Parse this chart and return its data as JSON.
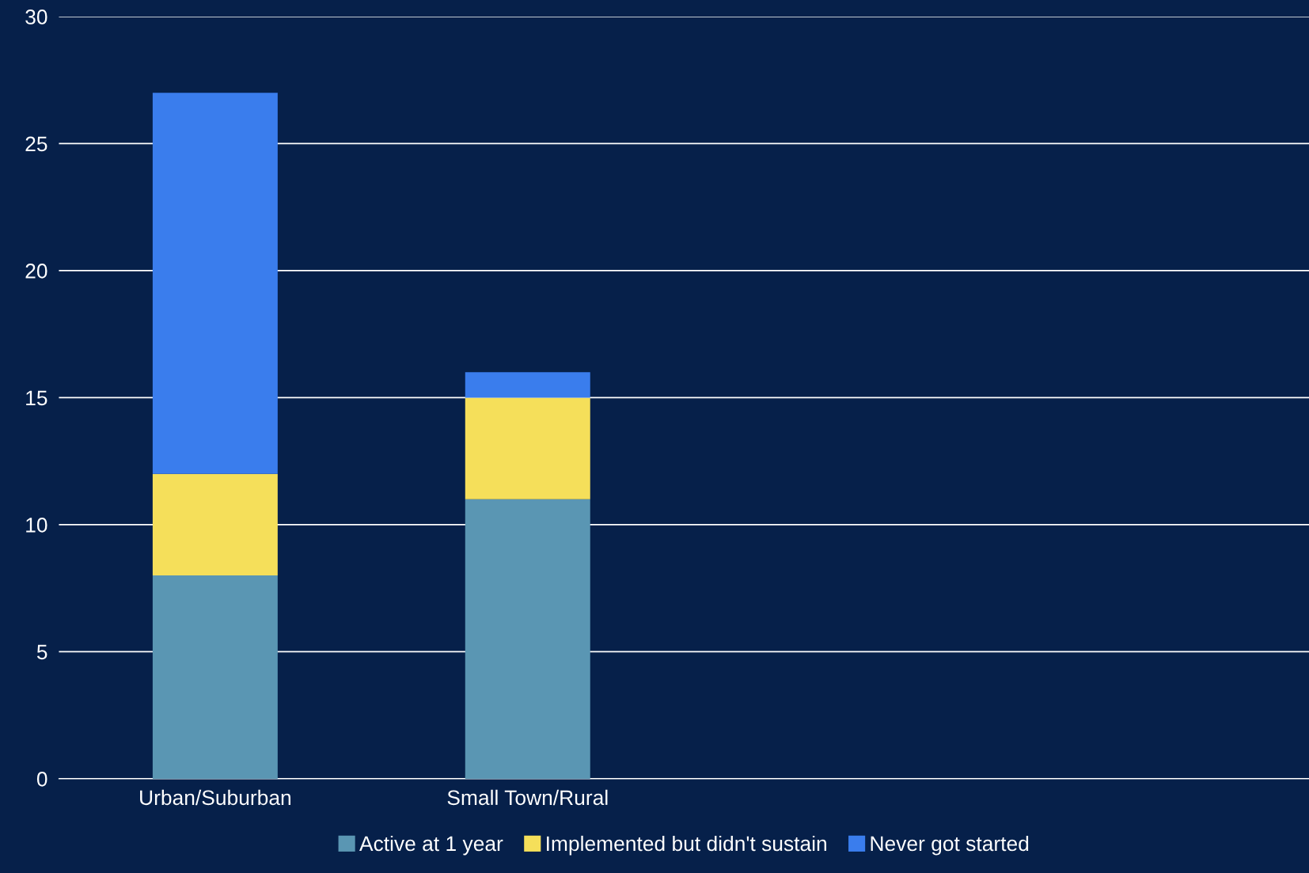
{
  "chart_data": {
    "type": "bar",
    "stacked": true,
    "categories": [
      "Urban/Suburban",
      "Small Town/Rural",
      null,
      null
    ],
    "series": [
      {
        "name": "Active at 1 year",
        "color": "#5a96b3",
        "values": [
          8,
          11,
          null,
          null
        ]
      },
      {
        "name": "Implemented but didn't sustain",
        "color": "#f5df5a",
        "values": [
          4,
          4,
          null,
          null
        ]
      },
      {
        "name": "Never got started",
        "color": "#3a7ded",
        "values": [
          15,
          1,
          null,
          null
        ]
      }
    ],
    "ylim": [
      0,
      30
    ],
    "yticks": [
      0,
      5,
      10,
      15,
      20,
      25,
      30
    ],
    "grid": "y",
    "legend": "bottom"
  }
}
